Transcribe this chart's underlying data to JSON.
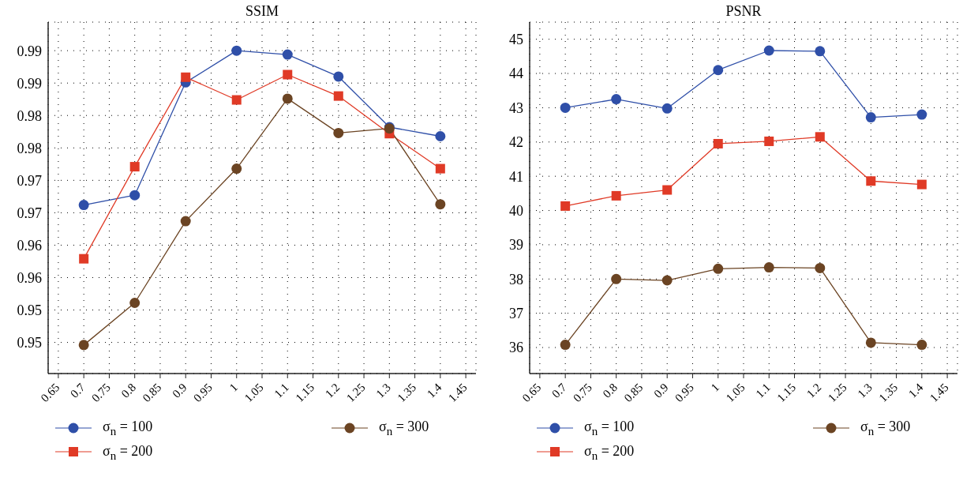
{
  "chart_data": [
    {
      "type": "line",
      "title": "SSIM",
      "x": [
        0.7,
        0.8,
        0.9,
        1,
        1.1,
        1.2,
        1.3,
        1.4
      ],
      "xlim": [
        0.63,
        1.47
      ],
      "xticks": [
        0.65,
        0.7,
        0.75,
        0.8,
        0.85,
        0.9,
        0.95,
        1,
        1.05,
        1.1,
        1.15,
        1.2,
        1.25,
        1.3,
        1.35,
        1.4,
        1.45
      ],
      "ylim": [
        0.9402,
        0.9944
      ],
      "yticks": [
        {
          "value": 0.945,
          "label": "0.95"
        },
        {
          "value": 0.95,
          "label": "0.95"
        },
        {
          "value": 0.955,
          "label": "0.96"
        },
        {
          "value": 0.96,
          "label": "0.96"
        },
        {
          "value": 0.965,
          "label": "0.97"
        },
        {
          "value": 0.97,
          "label": "0.97"
        },
        {
          "value": 0.975,
          "label": "0.98"
        },
        {
          "value": 0.98,
          "label": "0.98"
        },
        {
          "value": 0.985,
          "label": "0.99"
        },
        {
          "value": 0.99,
          "label": "0.99"
        }
      ],
      "grid": true,
      "legend": "bottom",
      "line_style": "solid",
      "series": [
        {
          "name": "σ$_{n}$ = 100",
          "color": "#2f4fa8",
          "marker": "circle",
          "values": [
            0.9662,
            0.9677,
            0.9851,
            0.99,
            0.9894,
            0.986,
            0.9782,
            0.9768
          ]
        },
        {
          "name": "σ$_{n}$ = 200",
          "color": "#e03a26",
          "marker": "square",
          "values": [
            0.9579,
            0.9721,
            0.9859,
            0.9824,
            0.9863,
            0.983,
            0.9772,
            0.9718
          ]
        },
        {
          "name": "σ$_{n}$ = 300",
          "color": "#6b4423",
          "marker": "circle",
          "values": [
            0.9446,
            0.9511,
            0.9637,
            0.9718,
            0.9826,
            0.9773,
            0.978,
            0.9663
          ]
        }
      ]
    },
    {
      "type": "line",
      "title": "PSNR",
      "x": [
        0.7,
        0.8,
        0.9,
        1,
        1.1,
        1.2,
        1.3,
        1.4
      ],
      "xlim": [
        0.63,
        1.47
      ],
      "xticks": [
        0.65,
        0.7,
        0.75,
        0.8,
        0.85,
        0.9,
        0.95,
        1,
        1.05,
        1.1,
        1.15,
        1.2,
        1.25,
        1.3,
        1.35,
        1.4,
        1.45
      ],
      "ylim": [
        35.24,
        45.5
      ],
      "yticks": [
        36,
        37,
        38,
        39,
        40,
        41,
        42,
        43,
        44,
        45
      ],
      "grid": true,
      "legend": "bottom",
      "line_style": "solid",
      "series": [
        {
          "name": "σ$_{n}$ = 100",
          "color": "#2f4fa8",
          "marker": "circle",
          "values": [
            43.0,
            43.25,
            42.98,
            44.1,
            44.67,
            44.65,
            42.72,
            42.8
          ]
        },
        {
          "name": "σ$_{n}$ = 200",
          "color": "#e03a26",
          "marker": "square",
          "values": [
            40.13,
            40.43,
            40.6,
            41.95,
            42.02,
            42.15,
            40.86,
            40.76
          ]
        },
        {
          "name": "σ$_{n}$ = 300",
          "color": "#6b4423",
          "marker": "circle",
          "values": [
            36.08,
            38.0,
            37.96,
            38.3,
            38.34,
            38.32,
            36.14,
            36.08
          ]
        }
      ]
    }
  ]
}
